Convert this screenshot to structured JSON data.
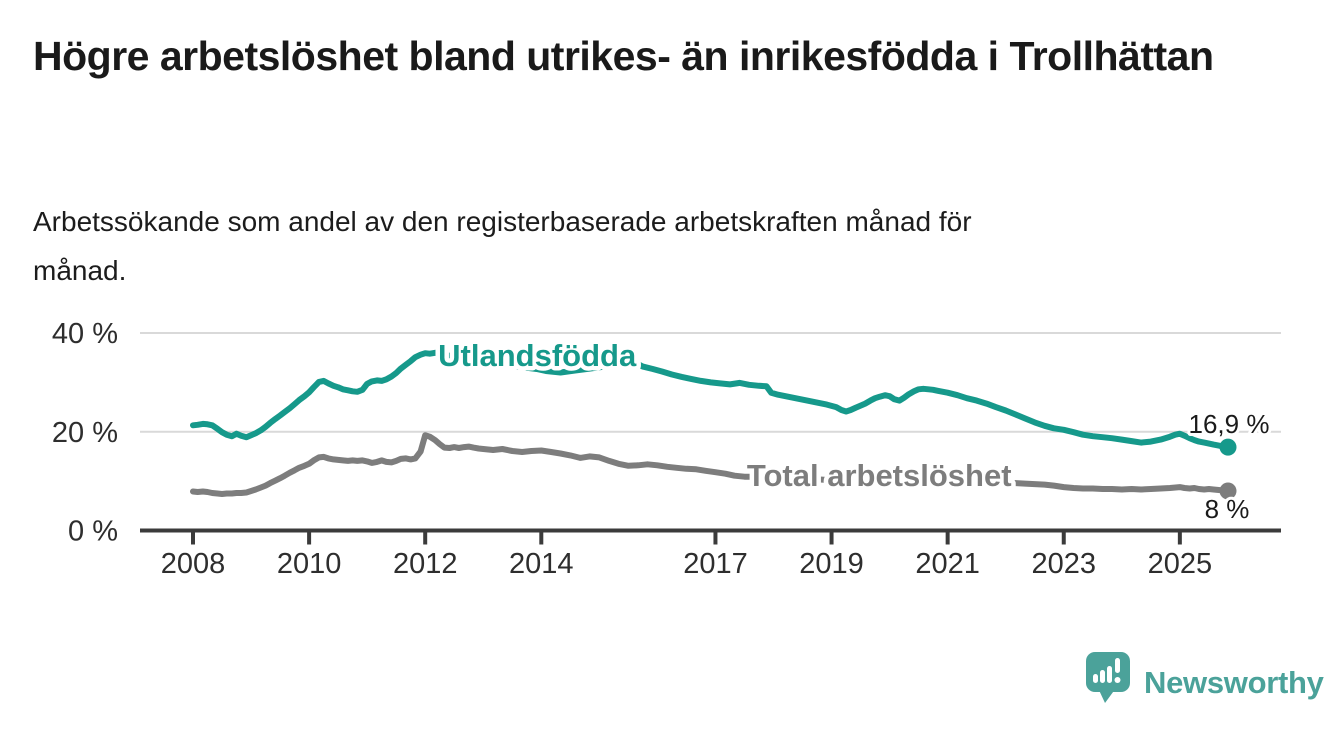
{
  "header": {
    "title": "Högre arbetslöshet bland utrikes- än inrikesfödda i Trollhättan",
    "subtitle": "Arbetssökande som andel av den registerbaserade arbetskraften månad för månad."
  },
  "footer": {
    "brand": "Newsworthy",
    "brand_color": "#4ba29a"
  },
  "chart_data": {
    "type": "line",
    "title": "Högre arbetslöshet bland utrikes- än inrikesfödda i Trollhättan",
    "subtitle": "Arbetssökande som andel av den registerbaserade arbetskraften månad för månad.",
    "unit": "%",
    "grid": "horizontal-only",
    "x_axis": {
      "ticks": [
        2008,
        2010,
        2012,
        2014,
        2017,
        2019,
        2021,
        2023,
        2025
      ],
      "range_years": [
        2007.1,
        2026.7
      ]
    },
    "y_axis": {
      "ticks": [
        {
          "value": 0,
          "label": "0 %"
        },
        {
          "value": 20,
          "label": "20 %"
        },
        {
          "value": 40,
          "label": "40 %"
        }
      ],
      "gridlines": [
        20,
        40
      ],
      "range": [
        0,
        42
      ]
    },
    "series": [
      {
        "id": "utlandsfodda",
        "name": "Utlandsfödda",
        "color": "#16998b",
        "end_value": 16.9,
        "end_label": "16,9 %",
        "end_label_offset": [
          1,
          -14
        ],
        "label_anchor": [
          2013.93,
          33.3
        ],
        "points": [
          [
            2008.0,
            21.3
          ],
          [
            2008.08,
            21.4
          ],
          [
            2008.17,
            21.6
          ],
          [
            2008.25,
            21.5
          ],
          [
            2008.33,
            21.3
          ],
          [
            2008.42,
            20.6
          ],
          [
            2008.5,
            19.9
          ],
          [
            2008.58,
            19.4
          ],
          [
            2008.67,
            19.1
          ],
          [
            2008.75,
            19.6
          ],
          [
            2008.83,
            19.2
          ],
          [
            2008.92,
            18.9
          ],
          [
            2009.0,
            19.3
          ],
          [
            2009.08,
            19.7
          ],
          [
            2009.17,
            20.3
          ],
          [
            2009.25,
            21.0
          ],
          [
            2009.33,
            21.8
          ],
          [
            2009.42,
            22.6
          ],
          [
            2009.5,
            23.3
          ],
          [
            2009.58,
            24.0
          ],
          [
            2009.67,
            24.8
          ],
          [
            2009.75,
            25.6
          ],
          [
            2009.83,
            26.4
          ],
          [
            2009.92,
            27.2
          ],
          [
            2010.0,
            28.0
          ],
          [
            2010.08,
            29.0
          ],
          [
            2010.17,
            30.1
          ],
          [
            2010.25,
            30.3
          ],
          [
            2010.33,
            29.8
          ],
          [
            2010.42,
            29.3
          ],
          [
            2010.5,
            29.0
          ],
          [
            2010.58,
            28.6
          ],
          [
            2010.67,
            28.4
          ],
          [
            2010.75,
            28.2
          ],
          [
            2010.83,
            28.1
          ],
          [
            2010.92,
            28.5
          ],
          [
            2011.0,
            29.7
          ],
          [
            2011.08,
            30.2
          ],
          [
            2011.17,
            30.4
          ],
          [
            2011.25,
            30.3
          ],
          [
            2011.33,
            30.6
          ],
          [
            2011.42,
            31.2
          ],
          [
            2011.5,
            31.9
          ],
          [
            2011.58,
            32.8
          ],
          [
            2011.67,
            33.6
          ],
          [
            2011.75,
            34.3
          ],
          [
            2011.83,
            35.1
          ],
          [
            2011.92,
            35.6
          ],
          [
            2012.0,
            35.9
          ],
          [
            2012.08,
            35.8
          ],
          [
            2012.17,
            36.0
          ],
          [
            2012.25,
            35.7
          ],
          [
            2012.42,
            35.4
          ],
          [
            2012.58,
            35.1
          ],
          [
            2012.75,
            34.8
          ],
          [
            2012.92,
            34.4
          ],
          [
            2013.17,
            33.9
          ],
          [
            2013.42,
            33.5
          ],
          [
            2013.67,
            33.1
          ],
          [
            2013.92,
            32.7
          ],
          [
            2014.08,
            32.3
          ],
          [
            2014.33,
            32.0
          ],
          [
            2014.58,
            32.4
          ],
          [
            2014.83,
            32.8
          ],
          [
            2015.08,
            33.2
          ],
          [
            2015.33,
            33.5
          ],
          [
            2015.58,
            33.8
          ],
          [
            2015.67,
            33.7
          ],
          [
            2015.75,
            33.2
          ],
          [
            2015.92,
            32.7
          ],
          [
            2016.08,
            32.2
          ],
          [
            2016.25,
            31.6
          ],
          [
            2016.42,
            31.1
          ],
          [
            2016.58,
            30.7
          ],
          [
            2016.75,
            30.3
          ],
          [
            2016.92,
            30.0
          ],
          [
            2017.08,
            29.8
          ],
          [
            2017.25,
            29.6
          ],
          [
            2017.42,
            29.9
          ],
          [
            2017.58,
            29.5
          ],
          [
            2017.75,
            29.3
          ],
          [
            2017.88,
            29.2
          ],
          [
            2017.96,
            27.9
          ],
          [
            2018.08,
            27.5
          ],
          [
            2018.25,
            27.1
          ],
          [
            2018.42,
            26.7
          ],
          [
            2018.58,
            26.3
          ],
          [
            2018.75,
            25.9
          ],
          [
            2018.92,
            25.5
          ],
          [
            2019.08,
            25.0
          ],
          [
            2019.17,
            24.4
          ],
          [
            2019.25,
            24.1
          ],
          [
            2019.33,
            24.4
          ],
          [
            2019.42,
            24.9
          ],
          [
            2019.5,
            25.3
          ],
          [
            2019.58,
            25.7
          ],
          [
            2019.67,
            26.3
          ],
          [
            2019.75,
            26.8
          ],
          [
            2019.83,
            27.1
          ],
          [
            2019.92,
            27.4
          ],
          [
            2020.0,
            27.2
          ],
          [
            2020.08,
            26.6
          ],
          [
            2020.17,
            26.3
          ],
          [
            2020.25,
            26.9
          ],
          [
            2020.33,
            27.6
          ],
          [
            2020.42,
            28.2
          ],
          [
            2020.5,
            28.6
          ],
          [
            2020.58,
            28.7
          ],
          [
            2020.67,
            28.6
          ],
          [
            2020.75,
            28.5
          ],
          [
            2020.83,
            28.3
          ],
          [
            2020.92,
            28.1
          ],
          [
            2021.0,
            27.9
          ],
          [
            2021.17,
            27.4
          ],
          [
            2021.33,
            26.8
          ],
          [
            2021.5,
            26.3
          ],
          [
            2021.67,
            25.7
          ],
          [
            2021.83,
            25.0
          ],
          [
            2022.0,
            24.3
          ],
          [
            2022.17,
            23.5
          ],
          [
            2022.33,
            22.7
          ],
          [
            2022.5,
            21.9
          ],
          [
            2022.67,
            21.2
          ],
          [
            2022.83,
            20.7
          ],
          [
            2023.0,
            20.4
          ],
          [
            2023.17,
            19.9
          ],
          [
            2023.33,
            19.4
          ],
          [
            2023.5,
            19.1
          ],
          [
            2023.67,
            18.9
          ],
          [
            2023.83,
            18.7
          ],
          [
            2024.0,
            18.4
          ],
          [
            2024.17,
            18.1
          ],
          [
            2024.33,
            17.8
          ],
          [
            2024.5,
            18.0
          ],
          [
            2024.67,
            18.4
          ],
          [
            2024.83,
            19.0
          ],
          [
            2024.92,
            19.4
          ],
          [
            2025.0,
            19.6
          ],
          [
            2025.08,
            19.2
          ],
          [
            2025.17,
            18.7
          ],
          [
            2025.25,
            18.3
          ],
          [
            2025.33,
            18.0
          ],
          [
            2025.42,
            17.8
          ],
          [
            2025.5,
            17.6
          ],
          [
            2025.58,
            17.4
          ],
          [
            2025.67,
            17.2
          ],
          [
            2025.75,
            17.0
          ],
          [
            2025.83,
            16.9
          ]
        ]
      },
      {
        "id": "total-arbetsloshet",
        "name": "Total arbetslöshet",
        "color": "#7d7d7d",
        "end_value": 8.0,
        "end_label": "8 %",
        "end_label_offset": [
          -1,
          27
        ],
        "label_anchor": [
          2019.82,
          9.0
        ],
        "points": [
          [
            2008.0,
            7.9
          ],
          [
            2008.08,
            7.8
          ],
          [
            2008.17,
            7.9
          ],
          [
            2008.25,
            7.8
          ],
          [
            2008.33,
            7.6
          ],
          [
            2008.42,
            7.5
          ],
          [
            2008.5,
            7.4
          ],
          [
            2008.58,
            7.5
          ],
          [
            2008.67,
            7.5
          ],
          [
            2008.75,
            7.6
          ],
          [
            2008.83,
            7.6
          ],
          [
            2008.92,
            7.7
          ],
          [
            2009.0,
            8.0
          ],
          [
            2009.08,
            8.3
          ],
          [
            2009.17,
            8.7
          ],
          [
            2009.25,
            9.1
          ],
          [
            2009.33,
            9.6
          ],
          [
            2009.42,
            10.1
          ],
          [
            2009.5,
            10.6
          ],
          [
            2009.58,
            11.1
          ],
          [
            2009.67,
            11.7
          ],
          [
            2009.75,
            12.2
          ],
          [
            2009.83,
            12.7
          ],
          [
            2009.92,
            13.1
          ],
          [
            2010.0,
            13.5
          ],
          [
            2010.08,
            14.2
          ],
          [
            2010.17,
            14.8
          ],
          [
            2010.25,
            14.9
          ],
          [
            2010.33,
            14.6
          ],
          [
            2010.42,
            14.4
          ],
          [
            2010.5,
            14.3
          ],
          [
            2010.58,
            14.2
          ],
          [
            2010.67,
            14.1
          ],
          [
            2010.75,
            14.2
          ],
          [
            2010.83,
            14.1
          ],
          [
            2010.92,
            14.2
          ],
          [
            2011.0,
            14.0
          ],
          [
            2011.08,
            13.7
          ],
          [
            2011.17,
            13.9
          ],
          [
            2011.25,
            14.2
          ],
          [
            2011.33,
            13.9
          ],
          [
            2011.42,
            13.8
          ],
          [
            2011.5,
            14.1
          ],
          [
            2011.58,
            14.5
          ],
          [
            2011.67,
            14.6
          ],
          [
            2011.75,
            14.4
          ],
          [
            2011.83,
            14.6
          ],
          [
            2011.92,
            16.0
          ],
          [
            2012.0,
            19.3
          ],
          [
            2012.08,
            19.0
          ],
          [
            2012.17,
            18.3
          ],
          [
            2012.25,
            17.5
          ],
          [
            2012.33,
            16.8
          ],
          [
            2012.42,
            16.7
          ],
          [
            2012.5,
            16.9
          ],
          [
            2012.58,
            16.7
          ],
          [
            2012.67,
            16.9
          ],
          [
            2012.75,
            17.0
          ],
          [
            2012.83,
            16.8
          ],
          [
            2012.92,
            16.6
          ],
          [
            2013.0,
            16.5
          ],
          [
            2013.17,
            16.3
          ],
          [
            2013.33,
            16.5
          ],
          [
            2013.5,
            16.1
          ],
          [
            2013.67,
            15.9
          ],
          [
            2013.83,
            16.1
          ],
          [
            2014.0,
            16.2
          ],
          [
            2014.17,
            15.9
          ],
          [
            2014.33,
            15.6
          ],
          [
            2014.5,
            15.2
          ],
          [
            2014.67,
            14.7
          ],
          [
            2014.83,
            15.0
          ],
          [
            2015.0,
            14.8
          ],
          [
            2015.17,
            14.1
          ],
          [
            2015.33,
            13.5
          ],
          [
            2015.5,
            13.1
          ],
          [
            2015.67,
            13.2
          ],
          [
            2015.83,
            13.4
          ],
          [
            2016.0,
            13.2
          ],
          [
            2016.17,
            12.9
          ],
          [
            2016.33,
            12.7
          ],
          [
            2016.5,
            12.5
          ],
          [
            2016.67,
            12.4
          ],
          [
            2016.83,
            12.1
          ],
          [
            2017.0,
            11.8
          ],
          [
            2017.17,
            11.5
          ],
          [
            2017.33,
            11.1
          ],
          [
            2017.5,
            10.9
          ],
          [
            2017.75,
            10.9
          ],
          [
            2018.0,
            10.8
          ],
          [
            2018.33,
            10.6
          ],
          [
            2018.67,
            10.4
          ],
          [
            2019.0,
            10.2
          ],
          [
            2019.33,
            10.1
          ],
          [
            2019.67,
            10.0
          ],
          [
            2020.0,
            10.6
          ],
          [
            2020.25,
            11.3
          ],
          [
            2020.5,
            11.5
          ],
          [
            2020.75,
            11.3
          ],
          [
            2021.0,
            10.9
          ],
          [
            2021.33,
            10.4
          ],
          [
            2021.67,
            10.0
          ],
          [
            2021.92,
            9.8
          ],
          [
            2022.17,
            9.6
          ],
          [
            2022.33,
            9.5
          ],
          [
            2022.5,
            9.4
          ],
          [
            2022.67,
            9.3
          ],
          [
            2022.83,
            9.1
          ],
          [
            2023.0,
            8.8
          ],
          [
            2023.17,
            8.6
          ],
          [
            2023.33,
            8.5
          ],
          [
            2023.5,
            8.5
          ],
          [
            2023.67,
            8.4
          ],
          [
            2023.83,
            8.4
          ],
          [
            2024.0,
            8.3
          ],
          [
            2024.17,
            8.4
          ],
          [
            2024.33,
            8.3
          ],
          [
            2024.5,
            8.4
          ],
          [
            2024.67,
            8.5
          ],
          [
            2024.83,
            8.6
          ],
          [
            2025.0,
            8.8
          ],
          [
            2025.08,
            8.6
          ],
          [
            2025.17,
            8.5
          ],
          [
            2025.25,
            8.6
          ],
          [
            2025.33,
            8.4
          ],
          [
            2025.42,
            8.3
          ],
          [
            2025.5,
            8.4
          ],
          [
            2025.58,
            8.3
          ],
          [
            2025.67,
            8.2
          ],
          [
            2025.75,
            8.1
          ],
          [
            2025.83,
            8.0
          ]
        ]
      }
    ]
  }
}
